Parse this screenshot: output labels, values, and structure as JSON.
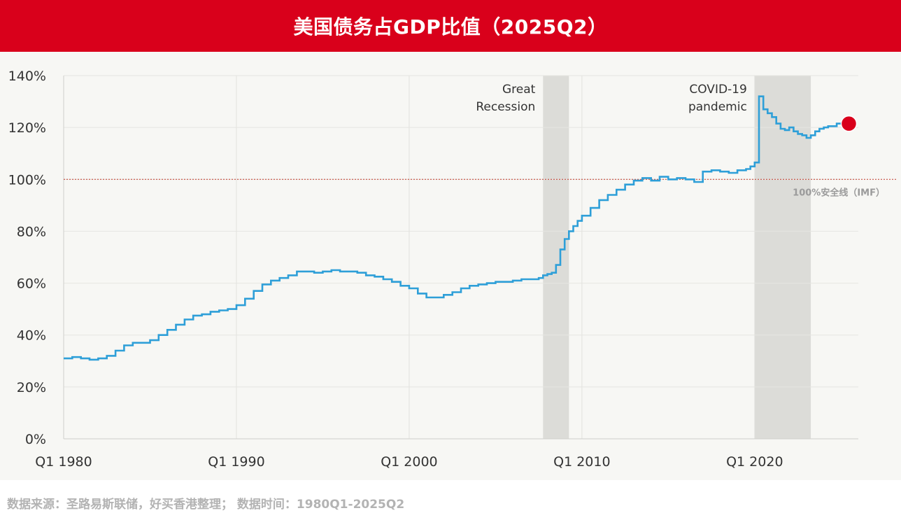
{
  "title": "美国债务占GDP比值（2025Q2）",
  "footer": "数据来源：圣路易斯联储，好买香港整理； 数据时间：1980Q1-2025Q2",
  "colors": {
    "title_bar": "#d9001b",
    "line": "#2e9fd8",
    "shading": "#dcdcd8",
    "reference": "#c0392b",
    "endpoint": "#d9001b",
    "background": "#f7f7f4"
  },
  "chart_data": {
    "type": "line",
    "title": "",
    "xlabel": "",
    "ylabel": "",
    "step": true,
    "x_range": [
      1980.0,
      2026.0
    ],
    "ylim": [
      0,
      140
    ],
    "y_ticks": [
      {
        "v": 0,
        "label": "0%"
      },
      {
        "v": 20,
        "label": "20%"
      },
      {
        "v": 40,
        "label": "40%"
      },
      {
        "v": 60,
        "label": "60%"
      },
      {
        "v": 80,
        "label": "80%"
      },
      {
        "v": 100,
        "label": "100%"
      },
      {
        "v": 120,
        "label": "120%"
      },
      {
        "v": 140,
        "label": "140%"
      }
    ],
    "x_ticks": [
      {
        "v": 1980,
        "label": "Q1 1980"
      },
      {
        "v": 1990,
        "label": "Q1 1990"
      },
      {
        "v": 2000,
        "label": "Q1 2000"
      },
      {
        "v": 2010,
        "label": "Q1 2010"
      },
      {
        "v": 2020,
        "label": "Q1 2020"
      }
    ],
    "shaded_regions": [
      {
        "start": 2007.75,
        "end": 2009.25,
        "label": [
          "Great",
          "Recession"
        ]
      },
      {
        "start": 2020.0,
        "end": 2023.25,
        "label": [
          "COVID-19",
          "pandemic"
        ]
      }
    ],
    "reference_line": {
      "value": 100,
      "label": "100%安全线（IMF）"
    },
    "endpoint": {
      "x": 2025.25,
      "y": 121.5
    },
    "series": [
      {
        "points": [
          [
            1980.0,
            31
          ],
          [
            1980.5,
            31.5
          ],
          [
            1981.0,
            31
          ],
          [
            1981.5,
            30.5
          ],
          [
            1982.0,
            31
          ],
          [
            1982.5,
            32
          ],
          [
            1983.0,
            34
          ],
          [
            1983.5,
            36
          ],
          [
            1984.0,
            37
          ],
          [
            1984.5,
            37
          ],
          [
            1985.0,
            38
          ],
          [
            1985.5,
            40
          ],
          [
            1986.0,
            42
          ],
          [
            1986.5,
            44
          ],
          [
            1987.0,
            46
          ],
          [
            1987.5,
            47.5
          ],
          [
            1988.0,
            48
          ],
          [
            1988.5,
            49
          ],
          [
            1989.0,
            49.5
          ],
          [
            1989.5,
            50
          ],
          [
            1990.0,
            51.5
          ],
          [
            1990.5,
            54
          ],
          [
            1991.0,
            57
          ],
          [
            1991.5,
            59.5
          ],
          [
            1992.0,
            61
          ],
          [
            1992.5,
            62
          ],
          [
            1993.0,
            63
          ],
          [
            1993.5,
            64.5
          ],
          [
            1994.0,
            64.5
          ],
          [
            1994.5,
            64
          ],
          [
            1995.0,
            64.5
          ],
          [
            1995.5,
            65
          ],
          [
            1996.0,
            64.5
          ],
          [
            1996.5,
            64.5
          ],
          [
            1997.0,
            64
          ],
          [
            1997.5,
            63
          ],
          [
            1998.0,
            62.5
          ],
          [
            1998.5,
            61.5
          ],
          [
            1999.0,
            60.5
          ],
          [
            1999.5,
            59
          ],
          [
            2000.0,
            58
          ],
          [
            2000.5,
            56
          ],
          [
            2001.0,
            54.5
          ],
          [
            2001.5,
            54.5
          ],
          [
            2002.0,
            55.5
          ],
          [
            2002.5,
            56.5
          ],
          [
            2003.0,
            58
          ],
          [
            2003.5,
            59
          ],
          [
            2004.0,
            59.5
          ],
          [
            2004.5,
            60
          ],
          [
            2005.0,
            60.5
          ],
          [
            2005.5,
            60.5
          ],
          [
            2006.0,
            61
          ],
          [
            2006.5,
            61.5
          ],
          [
            2007.0,
            61.5
          ],
          [
            2007.5,
            62
          ],
          [
            2007.75,
            63
          ],
          [
            2008.0,
            63.5
          ],
          [
            2008.25,
            64
          ],
          [
            2008.5,
            67
          ],
          [
            2008.75,
            73
          ],
          [
            2009.0,
            77
          ],
          [
            2009.25,
            80
          ],
          [
            2009.5,
            82
          ],
          [
            2009.75,
            84
          ],
          [
            2010.0,
            86
          ],
          [
            2010.5,
            89
          ],
          [
            2011.0,
            92
          ],
          [
            2011.5,
            94
          ],
          [
            2012.0,
            96
          ],
          [
            2012.5,
            98
          ],
          [
            2013.0,
            99.5
          ],
          [
            2013.5,
            100.5
          ],
          [
            2014.0,
            99.5
          ],
          [
            2014.5,
            101
          ],
          [
            2015.0,
            100
          ],
          [
            2015.5,
            100.5
          ],
          [
            2016.0,
            100
          ],
          [
            2016.5,
            99
          ],
          [
            2017.0,
            103
          ],
          [
            2017.5,
            103.5
          ],
          [
            2018.0,
            103
          ],
          [
            2018.5,
            102.5
          ],
          [
            2019.0,
            103.5
          ],
          [
            2019.5,
            104
          ],
          [
            2019.75,
            105
          ],
          [
            2020.0,
            106.5
          ],
          [
            2020.25,
            132
          ],
          [
            2020.5,
            127
          ],
          [
            2020.75,
            125.5
          ],
          [
            2021.0,
            124
          ],
          [
            2021.25,
            121.5
          ],
          [
            2021.5,
            119.5
          ],
          [
            2021.75,
            119
          ],
          [
            2022.0,
            120
          ],
          [
            2022.25,
            118.5
          ],
          [
            2022.5,
            117.5
          ],
          [
            2022.75,
            117
          ],
          [
            2023.0,
            116
          ],
          [
            2023.25,
            117
          ],
          [
            2023.5,
            118.5
          ],
          [
            2023.75,
            119.5
          ],
          [
            2024.0,
            120
          ],
          [
            2024.25,
            120.5
          ],
          [
            2024.5,
            120.5
          ],
          [
            2024.75,
            121.5
          ],
          [
            2025.0,
            121.5
          ],
          [
            2025.25,
            121.5
          ]
        ]
      }
    ]
  }
}
